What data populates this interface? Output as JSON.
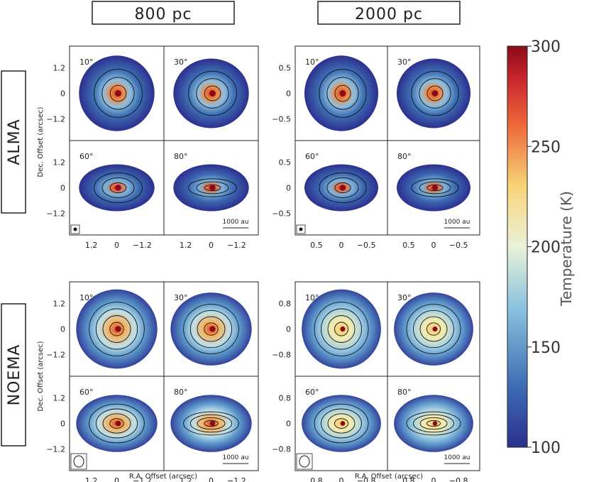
{
  "columns": [
    "800 pc",
    "2000 pc"
  ],
  "rows": [
    "ALMA",
    "NOEMA"
  ],
  "inclinations": [
    "10°",
    "30°",
    "60°",
    "80°"
  ],
  "axes": {
    "y_label": "Dec. Offset (arcsec)",
    "x_label": "R.A. Offset (arcsec)",
    "ticks_800": [
      "1.2",
      "0",
      "−1.2"
    ],
    "ticks_2000_alma": [
      "0.5",
      "0",
      "−0.5"
    ],
    "ticks_2000_noema": [
      "0.8",
      "0",
      "−0.8"
    ]
  },
  "scale_bar": "1000 au",
  "colors": {
    "low": "#2c2f8e",
    "mid_low": "#5fa5d0",
    "mid": "#f3ecb0",
    "mid_high": "#ee6a3a",
    "high": "#8a0a17",
    "contour": "#111111"
  },
  "chart_data": {
    "type": "heatmap",
    "colorbar": {
      "label": "Temperature (K)",
      "range": [
        100,
        300
      ],
      "ticks": [
        "300",
        "250",
        "200",
        "150",
        "100"
      ]
    },
    "panels": [
      {
        "row": "ALMA",
        "column": "800 pc",
        "inclination": "10°",
        "peak_temperature": 270
      },
      {
        "row": "ALMA",
        "column": "800 pc",
        "inclination": "30°",
        "peak_temperature": 265
      },
      {
        "row": "ALMA",
        "column": "800 pc",
        "inclination": "60°",
        "peak_temperature": 255
      },
      {
        "row": "ALMA",
        "column": "800 pc",
        "inclination": "80°",
        "peak_temperature": 250
      },
      {
        "row": "ALMA",
        "column": "2000 pc",
        "inclination": "10°",
        "peak_temperature": 260
      },
      {
        "row": "ALMA",
        "column": "2000 pc",
        "inclination": "30°",
        "peak_temperature": 255
      },
      {
        "row": "ALMA",
        "column": "2000 pc",
        "inclination": "60°",
        "peak_temperature": 245
      },
      {
        "row": "ALMA",
        "column": "2000 pc",
        "inclination": "80°",
        "peak_temperature": 240
      },
      {
        "row": "NOEMA",
        "column": "800 pc",
        "inclination": "10°",
        "peak_temperature": 245
      },
      {
        "row": "NOEMA",
        "column": "800 pc",
        "inclination": "30°",
        "peak_temperature": 240
      },
      {
        "row": "NOEMA",
        "column": "800 pc",
        "inclination": "60°",
        "peak_temperature": 225
      },
      {
        "row": "NOEMA",
        "column": "800 pc",
        "inclination": "80°",
        "peak_temperature": 215
      },
      {
        "row": "NOEMA",
        "column": "2000 pc",
        "inclination": "10°",
        "peak_temperature": 205
      },
      {
        "row": "NOEMA",
        "column": "2000 pc",
        "inclination": "30°",
        "peak_temperature": 200
      },
      {
        "row": "NOEMA",
        "column": "2000 pc",
        "inclination": "60°",
        "peak_temperature": 190
      },
      {
        "row": "NOEMA",
        "column": "2000 pc",
        "inclination": "80°",
        "peak_temperature": 185
      }
    ]
  }
}
